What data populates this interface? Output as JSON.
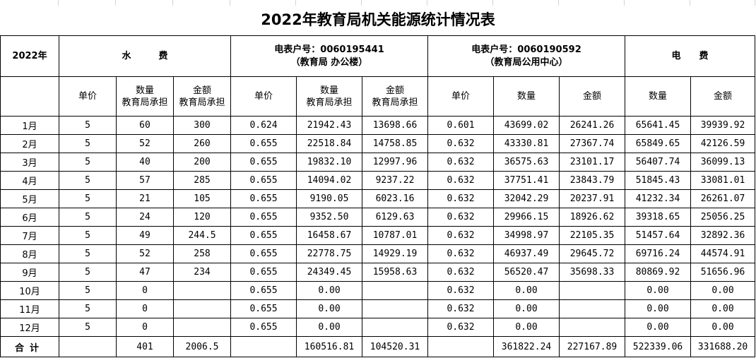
{
  "title": "2022年教育局机关能源统计情况表",
  "header": {
    "year": "2022年",
    "water": "水　　　费",
    "meter1_line1": "电表户号：0060195441",
    "meter1_line2": "（教育局 办公楼）",
    "meter2_line1": "电表户号：0060190592",
    "meter2_line2": "（教育局公用中心）",
    "electric": "电　　费"
  },
  "subheaders": {
    "w_price": "单价",
    "w_qty_1": "数量",
    "w_qty_2": "教育局承担",
    "w_amt_1": "金额",
    "w_amt_2": "教育局承担",
    "m1_price": "单价",
    "m1_qty_1": "数量",
    "m1_qty_2": "教育局承担",
    "m1_amt_1": "金额",
    "m1_amt_2": "教育局承担",
    "m2_price": "单价",
    "m2_qty": "数量",
    "m2_amt": "金额",
    "e_qty": "数量",
    "e_amt": "金额"
  },
  "rows": [
    {
      "month": "1月",
      "w_price": "5",
      "w_qty": "60",
      "w_amt": "300",
      "m1_price": "0.624",
      "m1_qty": "21942.43",
      "m1_amt": "13698.66",
      "m2_price": "0.601",
      "m2_qty": "43699.02",
      "m2_amt": "26241.26",
      "e_qty": "65641.45",
      "e_amt": "39939.92"
    },
    {
      "month": "2月",
      "w_price": "5",
      "w_qty": "52",
      "w_amt": "260",
      "m1_price": "0.655",
      "m1_qty": "22518.84",
      "m1_amt": "14758.85",
      "m2_price": "0.632",
      "m2_qty": "43330.81",
      "m2_amt": "27367.74",
      "e_qty": "65849.65",
      "e_amt": "42126.59"
    },
    {
      "month": "3月",
      "w_price": "5",
      "w_qty": "40",
      "w_amt": "200",
      "m1_price": "0.655",
      "m1_qty": "19832.10",
      "m1_amt": "12997.96",
      "m2_price": "0.632",
      "m2_qty": "36575.63",
      "m2_amt": "23101.17",
      "e_qty": "56407.74",
      "e_amt": "36099.13"
    },
    {
      "month": "4月",
      "w_price": "5",
      "w_qty": "57",
      "w_amt": "285",
      "m1_price": "0.655",
      "m1_qty": "14094.02",
      "m1_amt": "9237.22",
      "m2_price": "0.632",
      "m2_qty": "37751.41",
      "m2_amt": "23843.79",
      "e_qty": "51845.43",
      "e_amt": "33081.01"
    },
    {
      "month": "5月",
      "w_price": "5",
      "w_qty": "21",
      "w_amt": "105",
      "m1_price": "0.655",
      "m1_qty": "9190.05",
      "m1_amt": "6023.16",
      "m2_price": "0.632",
      "m2_qty": "32042.29",
      "m2_amt": "20237.91",
      "e_qty": "41232.34",
      "e_amt": "26261.07"
    },
    {
      "month": "6月",
      "w_price": "5",
      "w_qty": "24",
      "w_amt": "120",
      "m1_price": "0.655",
      "m1_qty": "9352.50",
      "m1_amt": "6129.63",
      "m2_price": "0.632",
      "m2_qty": "29966.15",
      "m2_amt": "18926.62",
      "e_qty": "39318.65",
      "e_amt": "25056.25"
    },
    {
      "month": "7月",
      "w_price": "5",
      "w_qty": "49",
      "w_amt": "244.5",
      "m1_price": "0.655",
      "m1_qty": "16458.67",
      "m1_amt": "10787.01",
      "m2_price": "0.632",
      "m2_qty": "34998.97",
      "m2_amt": "22105.35",
      "e_qty": "51457.64",
      "e_amt": "32892.36"
    },
    {
      "month": "8月",
      "w_price": "5",
      "w_qty": "52",
      "w_amt": "258",
      "m1_price": "0.655",
      "m1_qty": "22778.75",
      "m1_amt": "14929.19",
      "m2_price": "0.632",
      "m2_qty": "46937.49",
      "m2_amt": "29645.72",
      "e_qty": "69716.24",
      "e_amt": "44574.91"
    },
    {
      "month": "9月",
      "w_price": "5",
      "w_qty": "47",
      "w_amt": "234",
      "m1_price": "0.655",
      "m1_qty": "24349.45",
      "m1_amt": "15958.63",
      "m2_price": "0.632",
      "m2_qty": "56520.47",
      "m2_amt": "35698.33",
      "e_qty": "80869.92",
      "e_amt": "51656.96"
    },
    {
      "month": "10月",
      "w_price": "5",
      "w_qty": "0",
      "w_amt": "",
      "m1_price": "0.655",
      "m1_qty": "0.00",
      "m1_amt": "",
      "m2_price": "0.632",
      "m2_qty": "0.00",
      "m2_amt": "",
      "e_qty": "0.00",
      "e_amt": "0.00"
    },
    {
      "month": "11月",
      "w_price": "5",
      "w_qty": "0",
      "w_amt": "",
      "m1_price": "0.655",
      "m1_qty": "0.00",
      "m1_amt": "",
      "m2_price": "0.632",
      "m2_qty": "0.00",
      "m2_amt": "",
      "e_qty": "0.00",
      "e_amt": "0.00"
    },
    {
      "month": "12月",
      "w_price": "5",
      "w_qty": "0",
      "w_amt": "",
      "m1_price": "0.655",
      "m1_qty": "0.00",
      "m1_amt": "",
      "m2_price": "0.632",
      "m2_qty": "0.00",
      "m2_amt": "",
      "e_qty": "0.00",
      "e_amt": "0.00"
    }
  ],
  "totals": {
    "label": "合计",
    "w_qty": "401",
    "w_amt": "2006.5",
    "m1_qty": "160516.81",
    "m1_amt": "104520.31",
    "m2_qty": "361822.24",
    "m2_amt": "227167.89",
    "e_qty": "522339.06",
    "e_amt": "331688.20"
  }
}
